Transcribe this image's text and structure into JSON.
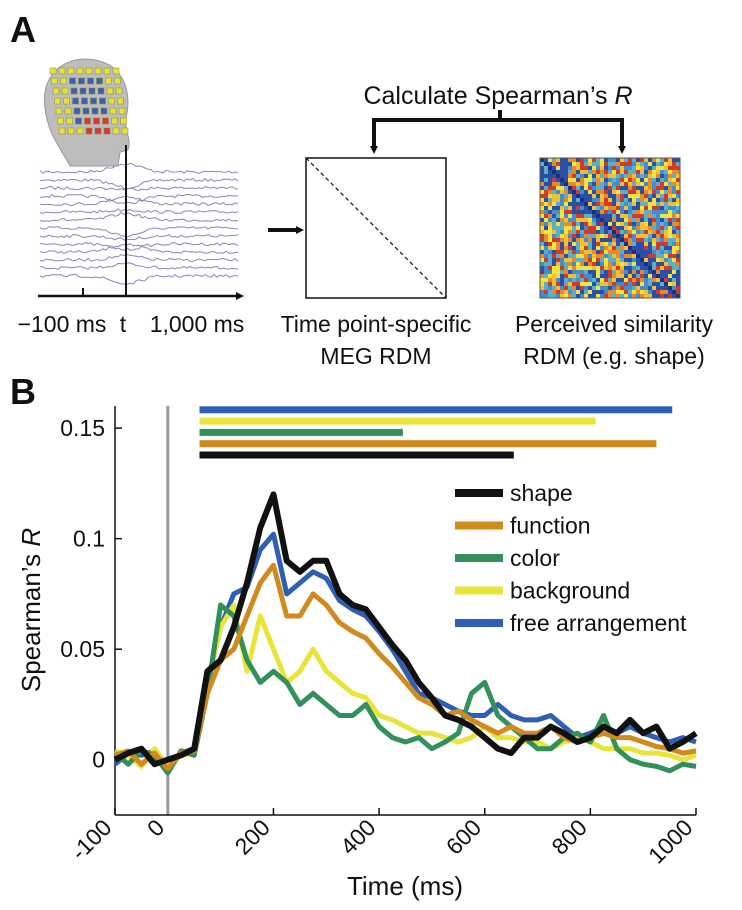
{
  "panel_a": {
    "letter": "A",
    "calc_title": [
      "Calculate Spearman’s ",
      "R"
    ],
    "time_labels": [
      "−100 ms",
      "t",
      "1,000 ms"
    ],
    "meg_rdm": [
      "Time point-specific",
      "MEG RDM"
    ],
    "perceived_rdm": [
      "Perceived similarity",
      "RDM (e.g. shape)"
    ]
  },
  "panel_b": {
    "letter": "B"
  },
  "chart_data": {
    "type": "line",
    "x_label": "Time (ms)",
    "y_label": [
      "Spearman’s ",
      "R"
    ],
    "xlim": [
      -100,
      1000
    ],
    "xticks": [
      -100,
      0,
      200,
      400,
      600,
      800,
      1000
    ],
    "ylim": [
      -0.025,
      0.16
    ],
    "yticks": [
      0,
      0.05,
      0.1,
      0.15
    ],
    "x": [
      -100,
      -75,
      -50,
      -25,
      0,
      25,
      50,
      75,
      100,
      125,
      150,
      175,
      200,
      225,
      250,
      275,
      300,
      325,
      350,
      375,
      400,
      425,
      450,
      475,
      500,
      525,
      550,
      575,
      600,
      625,
      650,
      675,
      700,
      725,
      750,
      775,
      800,
      825,
      850,
      875,
      900,
      925,
      950,
      975,
      1000
    ],
    "series": [
      {
        "name": "shape",
        "color": "#111111",
        "significant": [
          60,
          655
        ],
        "values": [
          0,
          0.003,
          0.005,
          -0.002,
          0,
          0.002,
          0.005,
          0.04,
          0.045,
          0.06,
          0.08,
          0.105,
          0.12,
          0.09,
          0.085,
          0.09,
          0.09,
          0.075,
          0.07,
          0.068,
          0.06,
          0.052,
          0.045,
          0.035,
          0.028,
          0.02,
          0.018,
          0.015,
          0.01,
          0.005,
          0.003,
          0.01,
          0.01,
          0.015,
          0.012,
          0.008,
          0.01,
          0.015,
          0.012,
          0.018,
          0.012,
          0.015,
          0.005,
          0.008,
          0.012
        ]
      },
      {
        "name": "function",
        "color": "#d08a1e",
        "significant": [
          60,
          925
        ],
        "values": [
          0.002,
          0.004,
          -0.002,
          0.003,
          -0.004,
          0.003,
          0.004,
          0.03,
          0.045,
          0.05,
          0.065,
          0.08,
          0.088,
          0.065,
          0.065,
          0.075,
          0.07,
          0.062,
          0.058,
          0.055,
          0.048,
          0.042,
          0.035,
          0.028,
          0.025,
          0.02,
          0.022,
          0.018,
          0.015,
          0.012,
          0.015,
          0.012,
          0.012,
          0.015,
          0.01,
          0.008,
          0.01,
          0.012,
          0.01,
          0.01,
          0.008,
          0.006,
          0.005,
          0.003,
          0.004
        ]
      },
      {
        "name": "color",
        "color": "#33905a",
        "significant": [
          60,
          445
        ],
        "values": [
          0.003,
          -0.002,
          0.004,
          0.002,
          -0.006,
          0.004,
          0.002,
          0.03,
          0.07,
          0.065,
          0.045,
          0.035,
          0.04,
          0.035,
          0.025,
          0.03,
          0.025,
          0.02,
          0.02,
          0.025,
          0.015,
          0.01,
          0.008,
          0.01,
          0.005,
          0.008,
          0.012,
          0.03,
          0.035,
          0.02,
          0.015,
          0.01,
          0.005,
          0.005,
          0.01,
          0.012,
          0.008,
          0.02,
          0.005,
          0,
          -0.002,
          -0.003,
          -0.005,
          -0.002,
          -0.003
        ]
      },
      {
        "name": "background",
        "color": "#e8e43a",
        "significant": [
          60,
          810
        ],
        "values": [
          0.004,
          0.002,
          -0.003,
          0.005,
          -0.003,
          0.002,
          0.003,
          0.035,
          0.06,
          0.07,
          0.04,
          0.065,
          0.05,
          0.035,
          0.04,
          0.05,
          0.04,
          0.035,
          0.03,
          0.028,
          0.02,
          0.018,
          0.015,
          0.012,
          0.012,
          0.01,
          0.008,
          0.01,
          0.015,
          0.01,
          0.01,
          0.008,
          0.008,
          0.005,
          0.008,
          0.01,
          0.008,
          0.005,
          0.005,
          0.005,
          0.003,
          0.003,
          0.002,
          0,
          0.002
        ]
      },
      {
        "name": "free arrangement",
        "color": "#2f5fb3",
        "significant": [
          60,
          955
        ],
        "values": [
          -0.002,
          0.003,
          0.002,
          0.004,
          -0.004,
          0.003,
          0.005,
          0.035,
          0.06,
          0.075,
          0.078,
          0.095,
          0.102,
          0.075,
          0.08,
          0.085,
          0.082,
          0.072,
          0.068,
          0.065,
          0.058,
          0.05,
          0.04,
          0.03,
          0.028,
          0.025,
          0.022,
          0.02,
          0.02,
          0.025,
          0.02,
          0.018,
          0.018,
          0.02,
          0.015,
          0.01,
          0.012,
          0.015,
          0.012,
          0.015,
          0.012,
          0.01,
          0.008,
          0.01,
          0.008
        ]
      }
    ]
  }
}
